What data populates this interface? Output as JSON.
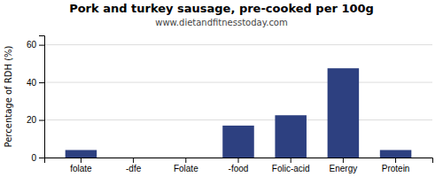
{
  "chart_data": {
    "type": "bar",
    "title": "Pork and turkey sausage, pre-cooked per 100g",
    "subtitle": "www.dietandfitnesstoday.com",
    "categories": [
      "folate",
      "-dfe",
      "Folate",
      "-food",
      "Folic-acid",
      "Energy",
      "Protein"
    ],
    "values": [
      4.0,
      0.0,
      0.0,
      17.0,
      22.5,
      47.5,
      4.0
    ],
    "color": "#2d4080",
    "ylabel": "Percentage of RDH (%)",
    "ylim": [
      0,
      65
    ],
    "yticks": [
      0,
      20,
      40,
      60
    ],
    "grid": true
  }
}
